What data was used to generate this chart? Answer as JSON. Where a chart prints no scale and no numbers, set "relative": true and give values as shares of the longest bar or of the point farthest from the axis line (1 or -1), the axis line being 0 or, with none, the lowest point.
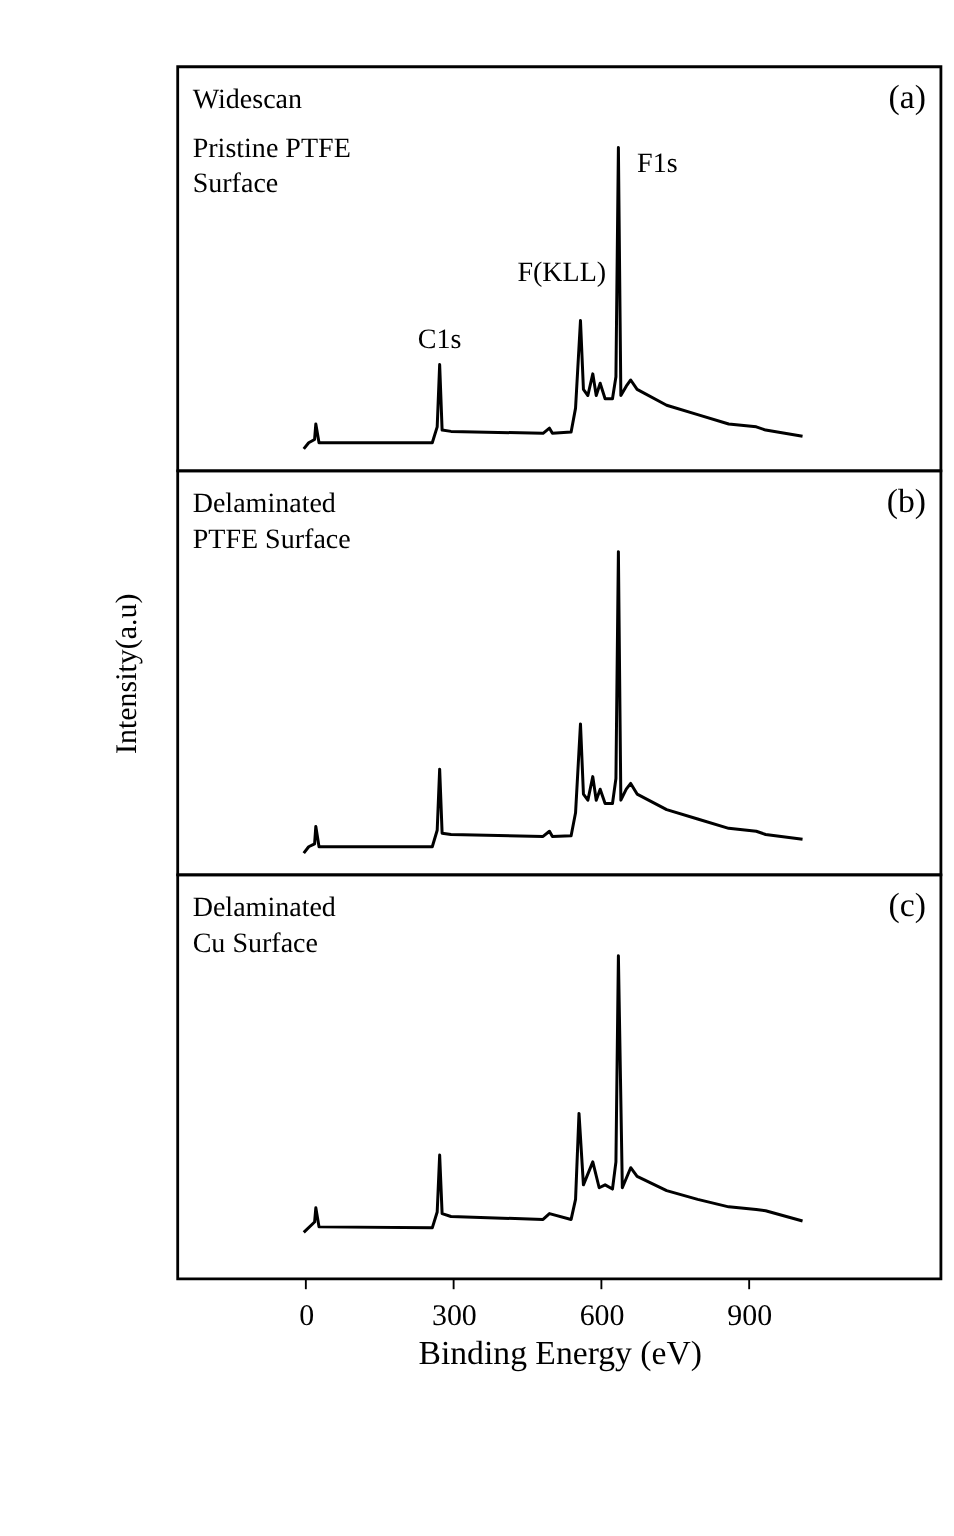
{
  "chart_data": [
    {
      "type": "line",
      "relative": true,
      "xlim": [
        -260,
        1290
      ],
      "xticks": [
        0,
        300,
        600,
        900
      ],
      "tick_labels": false,
      "line_style": "solid",
      "series": [
        {
          "color": "#000000",
          "x": [
            -4,
            6,
            18,
            20.5,
            27,
            46,
            257,
            267,
            272,
            277,
            295,
            482,
            495,
            501,
            539,
            548,
            558,
            564,
            573,
            583,
            590,
            598,
            608,
            623,
            630,
            635,
            640,
            651,
            660,
            673,
            733,
            796,
            859,
            915,
            934,
            1009
          ],
          "values": [
            0.068,
            0.087,
            0.097,
            0.145,
            0.087,
            0.087,
            0.087,
            0.136,
            0.329,
            0.126,
            0.122,
            0.116,
            0.132,
            0.116,
            0.12,
            0.194,
            0.465,
            0.252,
            0.233,
            0.3,
            0.233,
            0.271,
            0.223,
            0.223,
            0.291,
            1,
            0.233,
            0.262,
            0.281,
            0.252,
            0.203,
            0.174,
            0.145,
            0.136,
            0.126,
            0.107
          ]
        }
      ],
      "annotations": [
        "Widescan",
        "Pristine PTFE",
        "Surface",
        {
          "text": "C1s",
          "x": 272,
          "y": 0.329
        },
        {
          "text": "F(KLL)",
          "x": 558,
          "y": 0.465
        },
        {
          "text": "F1s",
          "x": 635,
          "y": 1
        },
        "(a)"
      ]
    },
    {
      "type": "line",
      "relative": true,
      "xlim": [
        -260,
        1290
      ],
      "xticks": [
        0,
        300,
        600,
        900
      ],
      "tick_labels": false,
      "line_style": "solid",
      "ylabel": "Intensity(a.u)",
      "series": [
        {
          "color": "#000000",
          "x": [
            -4,
            6,
            18,
            20.5,
            27,
            46,
            257,
            267,
            272,
            277,
            295,
            482,
            495,
            501,
            539,
            548,
            558,
            564,
            573,
            583,
            590,
            598,
            608,
            623,
            630,
            635,
            640,
            651,
            660,
            673,
            733,
            796,
            859,
            915,
            934,
            1009
          ],
          "values": [
            0.067,
            0.087,
            0.096,
            0.15,
            0.087,
            0.087,
            0.087,
            0.138,
            0.327,
            0.129,
            0.125,
            0.119,
            0.135,
            0.119,
            0.121,
            0.192,
            0.467,
            0.25,
            0.231,
            0.304,
            0.231,
            0.265,
            0.221,
            0.221,
            0.298,
            1,
            0.231,
            0.265,
            0.283,
            0.25,
            0.202,
            0.173,
            0.144,
            0.135,
            0.125,
            0.11
          ]
        }
      ],
      "annotations": [
        "Delaminated",
        "PTFE Surface",
        "(b)"
      ]
    },
    {
      "type": "line",
      "relative": true,
      "xlim": [
        -260,
        1290
      ],
      "xticks": [
        0,
        300,
        600,
        900
      ],
      "tick_labels": "x",
      "line_style": "solid",
      "xlabel": "Binding Energy (eV)",
      "series": [
        {
          "color": "#000000",
          "x": [
            -4,
            18,
            20.5,
            27,
            257,
            267,
            272,
            277,
            295,
            482,
            495,
            539,
            548,
            555,
            564,
            583,
            596,
            608,
            623,
            630,
            635,
            643,
            660,
            673,
            733,
            796,
            859,
            915,
            934,
            1009
          ],
          "values": [
            0.144,
            0.176,
            0.22,
            0.161,
            0.158,
            0.207,
            0.383,
            0.202,
            0.193,
            0.184,
            0.202,
            0.184,
            0.246,
            0.512,
            0.291,
            0.362,
            0.282,
            0.291,
            0.278,
            0.362,
            1,
            0.282,
            0.344,
            0.317,
            0.273,
            0.246,
            0.223,
            0.215,
            0.211,
            0.179
          ]
        }
      ],
      "annotations": [
        "Delaminated",
        "Cu Surface",
        "(c)"
      ]
    }
  ]
}
